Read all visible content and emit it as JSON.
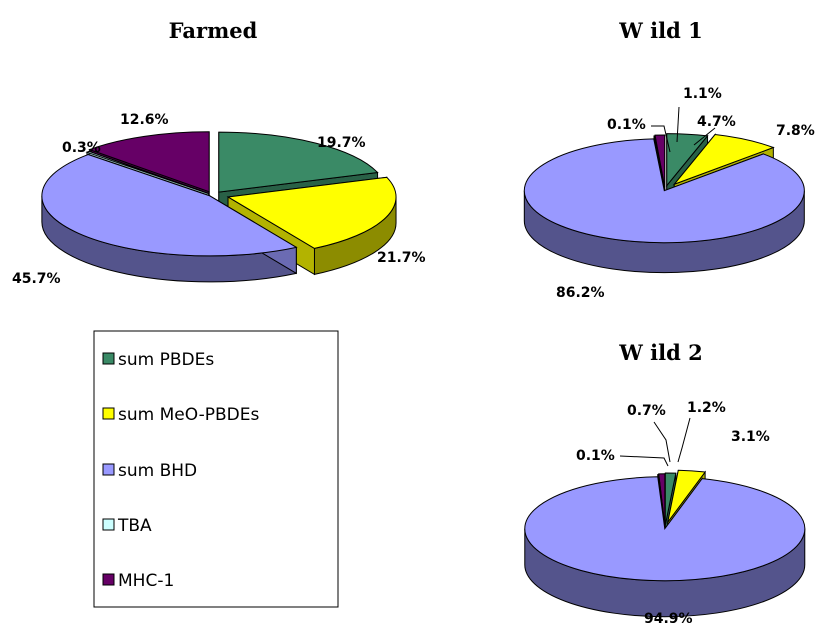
{
  "legend": {
    "items": [
      {
        "label": "sum PBDEs",
        "color": "#3a8a66"
      },
      {
        "label": "sum MeO-PBDEs",
        "color": "#ffff00"
      },
      {
        "label": "sum BHD",
        "color": "#9999ff"
      },
      {
        "label": "TBA",
        "color": "#ccffff"
      },
      {
        "label": "MHC-1",
        "color": "#660066"
      }
    ]
  },
  "chart_data": [
    {
      "type": "pie",
      "title": "Farmed",
      "categories": [
        "sum PBDEs",
        "sum MeO-PBDEs",
        "sum BHD",
        "TBA",
        "MHC-1"
      ],
      "values": [
        19.7,
        21.7,
        45.7,
        0.3,
        12.6
      ],
      "labels": [
        "19.7%",
        "21.7%",
        "45.7%",
        "0.3%",
        "12.6%"
      ],
      "style": "3d-exploded"
    },
    {
      "type": "pie",
      "title": "W ild 1",
      "categories": [
        "sum PBDEs",
        "sum MeO-PBDEs",
        "sum BHD",
        "TBA",
        "MHC-1"
      ],
      "values": [
        4.7,
        7.8,
        86.2,
        0.1,
        1.1
      ],
      "labels": [
        "4.7%",
        "7.8%",
        "86.2%",
        "0.1%",
        "1.1%"
      ],
      "style": "3d-exploded"
    },
    {
      "type": "pie",
      "title": "W ild 2",
      "categories": [
        "sum PBDEs",
        "sum MeO-PBDEs",
        "sum BHD",
        "TBA",
        "MHC-1"
      ],
      "values": [
        1.2,
        3.1,
        94.9,
        0.1,
        0.7
      ],
      "labels": [
        "1.2%",
        "3.1%",
        "94.9%",
        "0.1%",
        "0.7%"
      ],
      "style": "3d-exploded"
    }
  ]
}
